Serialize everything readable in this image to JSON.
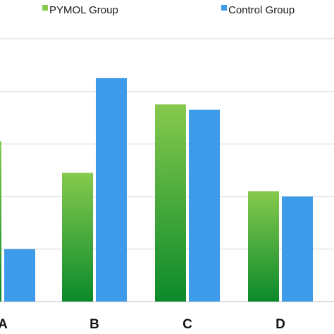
{
  "chart_data": {
    "type": "bar",
    "title": "",
    "xlabel": "",
    "ylabel": "",
    "categories": [
      "A",
      "B",
      "C",
      "D"
    ],
    "series": [
      {
        "name": "PYMOL Group",
        "values": [
          61,
          49,
          75,
          42
        ],
        "color_top": "#86c94d",
        "color_bottom": "#0b8a2b"
      },
      {
        "name": "Control Group",
        "values": [
          20,
          85,
          73,
          40
        ],
        "color": "#3d9be9"
      }
    ],
    "ylim": [
      0,
      100
    ],
    "yticks": [
      0,
      20,
      40,
      60,
      80,
      100
    ],
    "grid": true,
    "legend_position": "top"
  }
}
